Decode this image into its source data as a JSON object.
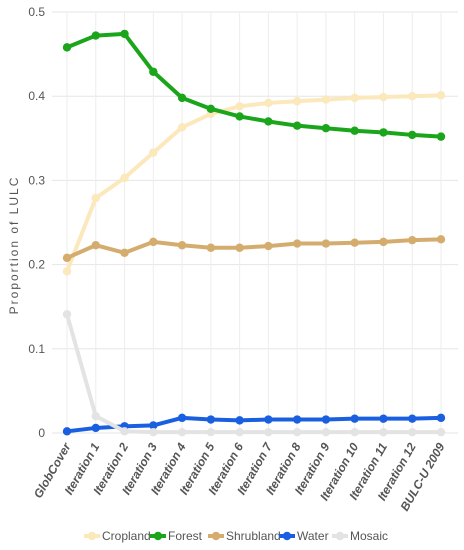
{
  "chart_data": {
    "type": "line",
    "title": "",
    "xlabel": "",
    "ylabel": "Proportion of LULC",
    "ylim": [
      0,
      0.5
    ],
    "yticks": [
      "0",
      "0.1",
      "0.2",
      "0.3",
      "0.4",
      "0.5"
    ],
    "ytick_values": [
      0,
      0.1,
      0.2,
      0.3,
      0.4,
      0.5
    ],
    "grid": true,
    "legend": "bottom",
    "categories": [
      "GlobCover",
      "Iteration 1",
      "Iteration 2",
      "Iteration 3",
      "Iteration 4",
      "Iteration 5",
      "Iteration 6",
      "Iteration 7",
      "Iteration 8",
      "Iteration 9",
      "Iteration 10",
      "Iteration 11",
      "Iteration 12",
      "BULC-U 2009"
    ],
    "series": [
      {
        "name": "Cropland",
        "color": "#fbe8bb",
        "values": [
          0.192,
          0.279,
          0.303,
          0.333,
          0.363,
          0.379,
          0.388,
          0.392,
          0.394,
          0.396,
          0.398,
          0.399,
          0.4,
          0.401
        ]
      },
      {
        "name": "Forest",
        "color": "#1aa51a",
        "values": [
          0.458,
          0.472,
          0.474,
          0.429,
          0.398,
          0.385,
          0.376,
          0.37,
          0.365,
          0.362,
          0.359,
          0.357,
          0.354,
          0.352
        ]
      },
      {
        "name": "Shrubland",
        "color": "#d4ad6e",
        "values": [
          0.208,
          0.223,
          0.214,
          0.227,
          0.223,
          0.22,
          0.22,
          0.222,
          0.225,
          0.225,
          0.226,
          0.227,
          0.229,
          0.23
        ]
      },
      {
        "name": "Water",
        "color": "#1a5fe0",
        "values": [
          0.002,
          0.006,
          0.008,
          0.009,
          0.018,
          0.016,
          0.015,
          0.016,
          0.016,
          0.016,
          0.017,
          0.017,
          0.017,
          0.018
        ]
      },
      {
        "name": "Mosaic",
        "color": "#e3e3e3",
        "values": [
          0.141,
          0.02,
          0.002,
          0.001,
          0.001,
          0.001,
          0.001,
          0.001,
          0.001,
          0.001,
          0.001,
          0.001,
          0.001,
          0.001
        ]
      }
    ]
  }
}
